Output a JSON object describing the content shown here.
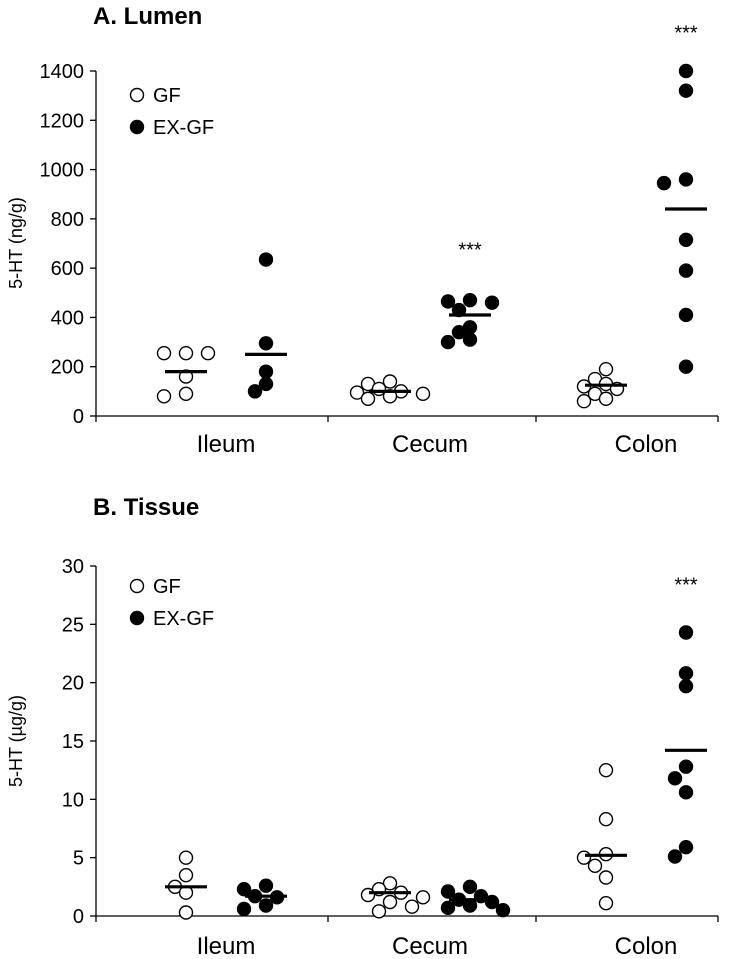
{
  "chart_data": [
    {
      "type": "scatter",
      "title": "A. Lumen",
      "ylabel": "5-HT (ng/g)",
      "xlabel": "",
      "ylim": [
        0,
        1400
      ],
      "yticks": [
        0,
        200,
        400,
        600,
        800,
        1000,
        1200,
        1400
      ],
      "categories": [
        "Ileum",
        "Cecum",
        "Colon"
      ],
      "legend": {
        "position": "top-left",
        "entries": [
          "GF",
          "EX-GF"
        ]
      },
      "series": [
        {
          "name": "GF",
          "marker": "open-circle",
          "points": [
            [
              255,
              255,
              255,
              160,
              80,
              90
            ],
            [
              140,
              130,
              110,
              100,
              95,
              90,
              80,
              70
            ],
            [
              190,
              150,
              130,
              120,
              110,
              90,
              70,
              60
            ]
          ],
          "means": [
            180,
            100,
            125
          ]
        },
        {
          "name": "EX-GF",
          "marker": "filled-circle",
          "points": [
            [
              635,
              295,
              180,
              130,
              100
            ],
            [
              470,
              465,
              460,
              430,
              360,
              340,
              310,
              300
            ],
            [
              1400,
              1320,
              960,
              945,
              715,
              590,
              410,
              200
            ]
          ],
          "means": [
            250,
            410,
            840
          ]
        }
      ],
      "annotations": [
        {
          "category": "Cecum",
          "series": "EX-GF",
          "text": "***",
          "y": 680
        },
        {
          "category": "Colon",
          "series": "EX-GF",
          "text": "***",
          "y": 1560
        }
      ]
    },
    {
      "type": "scatter",
      "title": "B. Tissue",
      "ylabel": "5-HT (µg/g)",
      "xlabel": "",
      "ylim": [
        0,
        30
      ],
      "yticks": [
        0,
        5,
        10,
        15,
        20,
        25,
        30
      ],
      "categories": [
        "Ileum",
        "Cecum",
        "Colon"
      ],
      "legend": {
        "position": "top-left",
        "entries": [
          "GF",
          "EX-GF"
        ]
      },
      "series": [
        {
          "name": "GF",
          "marker": "open-circle",
          "points": [
            [
              5.0,
              3.5,
              2.5,
              2.0,
              0.3
            ],
            [
              2.8,
              2.3,
              2.0,
              1.8,
              1.6,
              1.2,
              0.8,
              0.4
            ],
            [
              12.5,
              8.3,
              5.3,
              5.0,
              4.3,
              3.3,
              1.1
            ]
          ],
          "means": [
            2.5,
            2.0,
            5.2
          ]
        },
        {
          "name": "EX-GF",
          "marker": "filled-circle",
          "points": [
            [
              2.6,
              2.3,
              1.7,
              1.6,
              0.9,
              0.6
            ],
            [
              2.5,
              2.1,
              1.7,
              1.4,
              1.2,
              0.9,
              0.7,
              0.5
            ],
            [
              24.3,
              20.8,
              19.7,
              12.8,
              11.8,
              10.6,
              5.9,
              5.1
            ]
          ],
          "means": [
            1.7,
            1.4,
            14.2
          ]
        }
      ],
      "annotations": [
        {
          "category": "Colon",
          "series": "EX-GF",
          "text": "***",
          "y": 28.5
        }
      ]
    }
  ]
}
